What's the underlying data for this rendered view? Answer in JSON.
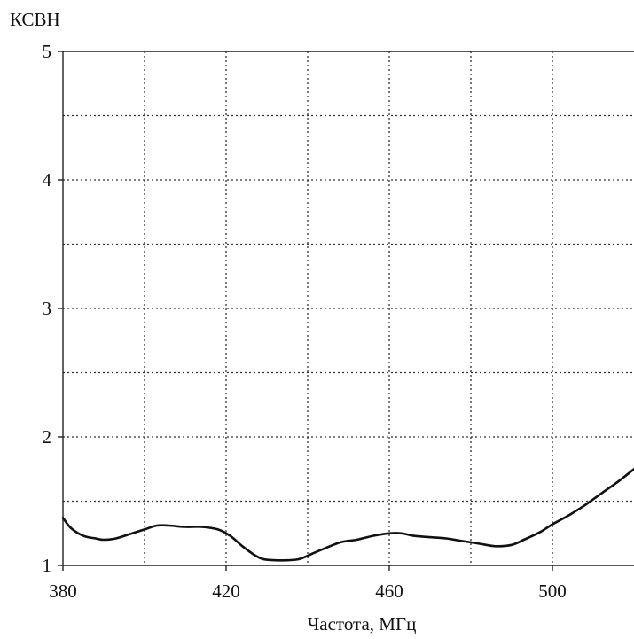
{
  "chart_data": {
    "type": "line",
    "title": "",
    "ylabel": "КСВН",
    "xlabel": "Частота, МГц",
    "xlim": [
      380,
      520
    ],
    "ylim": [
      1,
      5
    ],
    "x_ticks": [
      380,
      420,
      460,
      500
    ],
    "x_tick_labels": [
      "380",
      "420",
      "460",
      "500"
    ],
    "y_ticks": [
      1,
      2,
      3,
      4,
      5
    ],
    "y_tick_labels": [
      "1",
      "2",
      "3",
      "4",
      "5"
    ],
    "x_grid": [
      380,
      400,
      420,
      440,
      460,
      480,
      500
    ],
    "y_grid": [
      1.5,
      2,
      2.5,
      3,
      3.5,
      4,
      4.5,
      5
    ],
    "grid": true,
    "series": [
      {
        "color": "#111111",
        "x": [
          380,
          382,
          385,
          388,
          390,
          393,
          396,
          400,
          403,
          406,
          410,
          414,
          418,
          421,
          424,
          427,
          429,
          432,
          435,
          438,
          441,
          444,
          448,
          452,
          456,
          460,
          463,
          466,
          470,
          474,
          478,
          482,
          486,
          490,
          493,
          497,
          500,
          504,
          508,
          512,
          516,
          520
        ],
        "y": [
          1.37,
          1.29,
          1.23,
          1.21,
          1.2,
          1.21,
          1.24,
          1.28,
          1.31,
          1.31,
          1.3,
          1.3,
          1.28,
          1.23,
          1.15,
          1.08,
          1.05,
          1.04,
          1.04,
          1.05,
          1.09,
          1.13,
          1.18,
          1.2,
          1.23,
          1.25,
          1.25,
          1.23,
          1.22,
          1.21,
          1.19,
          1.17,
          1.15,
          1.16,
          1.2,
          1.26,
          1.32,
          1.39,
          1.47,
          1.56,
          1.65,
          1.75
        ]
      }
    ]
  }
}
